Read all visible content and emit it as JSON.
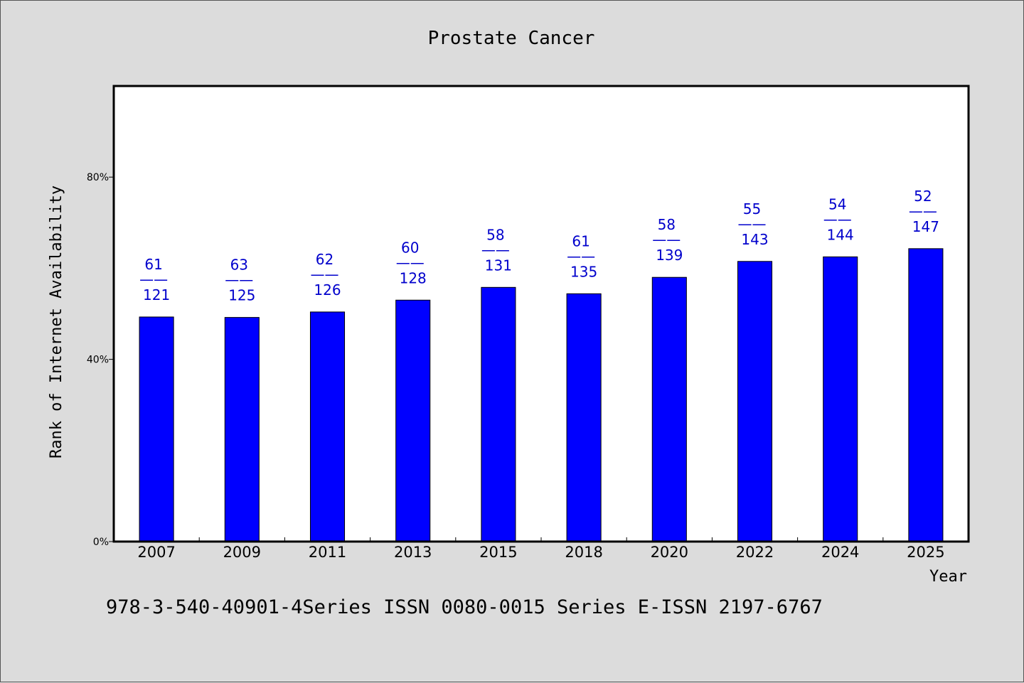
{
  "chart_data": {
    "type": "bar",
    "title": "Prostate Cancer",
    "xlabel": "Year",
    "ylabel": "Rank of Internet Availability",
    "ylim": [
      0,
      100
    ],
    "yticks": [
      0,
      40,
      80
    ],
    "ytick_labels": [
      "0%",
      "40%",
      "80%"
    ],
    "grid": false,
    "bar_color": "#0000ff",
    "label_color": "#0000cc",
    "categories": [
      "2007",
      "2009",
      "2011",
      "2013",
      "2015",
      "2018",
      "2020",
      "2022",
      "2024",
      "2025"
    ],
    "values": [
      49.3,
      49.2,
      50.4,
      53.0,
      55.8,
      54.4,
      58.0,
      61.5,
      62.5,
      64.3
    ],
    "label_top": [
      "61",
      "63",
      "62",
      "60",
      "58",
      "61",
      "58",
      "55",
      "54",
      "52"
    ],
    "label_sep": "——",
    "label_bottom": [
      "121",
      "125",
      "126",
      "128",
      "131",
      "135",
      "139",
      "143",
      "144",
      "147"
    ]
  },
  "footer": "978-3-540-40901-4Series ISSN 0080-0015 Series E-ISSN 2197-6767"
}
